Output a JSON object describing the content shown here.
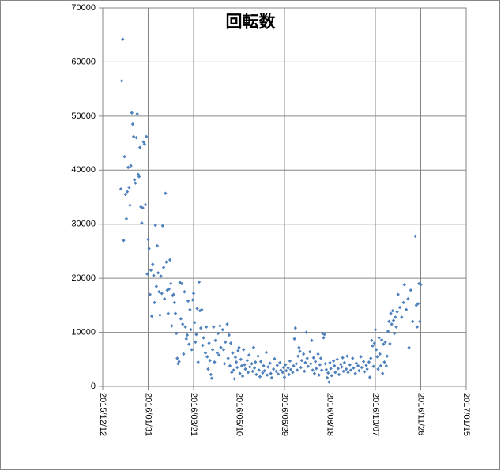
{
  "chart_data": {
    "type": "scatter",
    "title": "回転数",
    "color": "#4f81bd",
    "grid": true,
    "xlim": [
      "2015/12/12",
      "2017/01/15"
    ],
    "xticks": [
      "2015/12/12",
      "2016/01/31",
      "2016/03/21",
      "2016/05/10",
      "2016/06/29",
      "2016/08/18",
      "2016/10/07",
      "2016/11/26",
      "2017/01/15"
    ],
    "ylim": [
      0,
      70000
    ],
    "yticks": [
      0,
      10000,
      20000,
      30000,
      40000,
      50000,
      60000,
      70000
    ],
    "x": [
      "2016/01/01",
      "2016/01/02",
      "2016/01/03",
      "2016/01/04",
      "2016/01/05",
      "2016/01/06",
      "2016/01/07",
      "2016/01/08",
      "2016/01/09",
      "2016/01/10",
      "2016/01/11",
      "2016/01/12",
      "2016/01/13",
      "2016/01/14",
      "2016/01/15",
      "2016/01/16",
      "2016/01/17",
      "2016/01/18",
      "2016/01/19",
      "2016/01/20",
      "2016/01/21",
      "2016/01/22",
      "2016/01/23",
      "2016/01/24",
      "2016/01/25",
      "2016/01/26",
      "2016/01/27",
      "2016/01/28",
      "2016/01/29",
      "2016/01/30",
      "2016/01/31",
      "2016/02/01",
      "2016/02/02",
      "2016/02/03",
      "2016/02/04",
      "2016/02/05",
      "2016/02/06",
      "2016/02/07",
      "2016/02/08",
      "2016/02/09",
      "2016/02/10",
      "2016/02/11",
      "2016/02/12",
      "2016/02/13",
      "2016/02/14",
      "2016/02/15",
      "2016/02/16",
      "2016/02/17",
      "2016/02/18",
      "2016/02/19",
      "2016/02/20",
      "2016/02/21",
      "2016/02/22",
      "2016/02/23",
      "2016/02/24",
      "2016/02/25",
      "2016/02/26",
      "2016/02/27",
      "2016/02/28",
      "2016/02/29",
      "2016/03/01",
      "2016/03/02",
      "2016/03/03",
      "2016/03/04",
      "2016/03/05",
      "2016/03/06",
      "2016/03/07",
      "2016/03/08",
      "2016/03/09",
      "2016/03/10",
      "2016/03/11",
      "2016/03/12",
      "2016/03/13",
      "2016/03/14",
      "2016/03/15",
      "2016/03/16",
      "2016/03/17",
      "2016/03/18",
      "2016/03/19",
      "2016/03/20",
      "2016/03/21",
      "2016/03/22",
      "2016/03/23",
      "2016/03/24",
      "2016/03/25",
      "2016/03/26",
      "2016/03/27",
      "2016/03/28",
      "2016/03/29",
      "2016/03/30",
      "2016/03/31",
      "2016/04/01",
      "2016/04/03",
      "2016/04/04",
      "2016/04/05",
      "2016/04/06",
      "2016/04/07",
      "2016/04/08",
      "2016/04/09",
      "2016/04/10",
      "2016/04/11",
      "2016/04/12",
      "2016/04/13",
      "2016/04/14",
      "2016/04/16",
      "2016/04/17",
      "2016/04/18",
      "2016/04/19",
      "2016/04/20",
      "2016/04/22",
      "2016/04/23",
      "2016/04/24",
      "2016/04/25",
      "2016/04/27",
      "2016/04/28",
      "2016/04/29",
      "2016/04/30",
      "2016/05/01",
      "2016/05/02",
      "2016/05/03",
      "2016/05/04",
      "2016/05/05",
      "2016/05/06",
      "2016/05/07",
      "2016/05/08",
      "2016/05/09",
      "2016/05/10",
      "2016/05/11",
      "2016/05/12",
      "2016/05/13",
      "2016/05/14",
      "2016/05/15",
      "2016/05/16",
      "2016/05/17",
      "2016/05/19",
      "2016/05/20",
      "2016/05/21",
      "2016/05/22",
      "2016/05/24",
      "2016/05/25",
      "2016/05/26",
      "2016/05/27",
      "2016/05/28",
      "2016/05/29",
      "2016/05/31",
      "2016/06/01",
      "2016/06/02",
      "2016/06/03",
      "2016/06/05",
      "2016/06/06",
      "2016/06/07",
      "2016/06/09",
      "2016/06/10",
      "2016/06/11",
      "2016/06/13",
      "2016/06/14",
      "2016/06/15",
      "2016/06/17",
      "2016/06/18",
      "2016/06/20",
      "2016/06/21",
      "2016/06/22",
      "2016/06/24",
      "2016/06/25",
      "2016/06/27",
      "2016/06/28",
      "2016/06/29",
      "2016/06/30",
      "2016/07/01",
      "2016/07/03",
      "2016/07/04",
      "2016/07/05",
      "2016/07/06",
      "2016/07/08",
      "2016/07/09",
      "2016/07/10",
      "2016/07/11",
      "2016/07/12",
      "2016/07/13",
      "2016/07/14",
      "2016/07/15",
      "2016/07/16",
      "2016/07/17",
      "2016/07/18",
      "2016/07/20",
      "2016/07/21",
      "2016/07/22",
      "2016/07/23",
      "2016/07/24",
      "2016/07/25",
      "2016/07/27",
      "2016/07/28",
      "2016/07/29",
      "2016/07/30",
      "2016/07/31",
      "2016/08/01",
      "2016/08/02",
      "2016/08/03",
      "2016/08/05",
      "2016/08/06",
      "2016/08/07",
      "2016/08/08",
      "2016/08/09",
      "2016/08/10",
      "2016/08/11",
      "2016/08/12",
      "2016/08/13",
      "2016/08/14",
      "2016/08/15",
      "2016/08/16",
      "2016/08/17",
      "2016/08/18",
      "2016/08/19",
      "2016/08/20",
      "2016/08/22",
      "2016/08/23",
      "2016/08/24",
      "2016/08/26",
      "2016/08/27",
      "2016/08/28",
      "2016/08/30",
      "2016/08/31",
      "2016/09/01",
      "2016/09/02",
      "2016/09/03",
      "2016/09/05",
      "2016/09/06",
      "2016/09/07",
      "2016/09/09",
      "2016/09/10",
      "2016/09/12",
      "2016/09/13",
      "2016/09/15",
      "2016/09/16",
      "2016/09/18",
      "2016/09/19",
      "2016/09/21",
      "2016/09/22",
      "2016/09/24",
      "2016/09/25",
      "2016/09/27",
      "2016/09/28",
      "2016/09/30",
      "2016/10/01",
      "2016/10/02",
      "2016/10/03",
      "2016/10/04",
      "2016/10/05",
      "2016/10/06",
      "2016/10/07",
      "2016/10/08",
      "2016/10/09",
      "2016/10/10",
      "2016/10/11",
      "2016/10/12",
      "2016/10/13",
      "2016/10/14",
      "2016/10/15",
      "2016/10/16",
      "2016/10/17",
      "2016/10/18",
      "2016/10/19",
      "2016/10/20",
      "2016/10/21",
      "2016/10/22",
      "2016/10/23",
      "2016/10/24",
      "2016/10/25",
      "2016/10/26",
      "2016/10/27",
      "2016/10/28",
      "2016/10/29",
      "2016/10/30",
      "2016/10/31",
      "2016/11/01",
      "2016/11/03",
      "2016/11/05",
      "2016/11/07",
      "2016/11/08",
      "2016/11/10",
      "2016/11/12",
      "2016/11/13",
      "2016/11/15",
      "2016/11/17",
      "2016/11/20",
      "2016/11/21",
      "2016/11/22",
      "2016/11/23",
      "2016/11/24",
      "2016/11/25",
      "2016/11/26"
    ],
    "values": [
      36500,
      56500,
      64200,
      27000,
      42500,
      35500,
      31000,
      36000,
      40500,
      36800,
      33500,
      40800,
      50600,
      48500,
      46200,
      38200,
      37600,
      46000,
      50400,
      39200,
      38800,
      44200,
      33200,
      30200,
      33000,
      45200,
      44800,
      33600,
      46200,
      20800,
      27200,
      25500,
      17000,
      21500,
      13000,
      22600,
      20500,
      15500,
      29800,
      18500,
      26000,
      21000,
      17500,
      13200,
      20400,
      17200,
      29700,
      22000,
      16200,
      35700,
      23000,
      17800,
      13500,
      18000,
      23400,
      19000,
      11200,
      16800,
      17000,
      15500,
      13500,
      9800,
      5200,
      4200,
      4600,
      19200,
      12500,
      19000,
      11500,
      6000,
      17500,
      11000,
      8800,
      9500,
      15800,
      7800,
      14200,
      10500,
      6800,
      16000,
      17200,
      11800,
      8200,
      9600,
      14400,
      4500,
      19300,
      14000,
      10800,
      14200,
      7600,
      9000,
      6200,
      11000,
      5500,
      3200,
      8000,
      4800,
      2200,
      1500,
      6800,
      11000,
      4500,
      8500,
      6200,
      9800,
      5800,
      11200,
      7200,
      10500,
      6800,
      4200,
      8200,
      11500,
      5200,
      9500,
      3800,
      8000,
      2600,
      6200,
      3000,
      1400,
      5400,
      4500,
      3500,
      6600,
      7200,
      2400,
      5000,
      3800,
      1900,
      6800,
      4000,
      3200,
      4800,
      2600,
      5800,
      3600,
      4200,
      2800,
      7200,
      3400,
      4500,
      2200,
      5600,
      3000,
      1800,
      4600,
      2500,
      3800,
      2900,
      6300,
      2100,
      3600,
      4300,
      2400,
      1600,
      3200,
      5100,
      2800,
      3900,
      2300,
      4400,
      3000,
      2600,
      3500,
      1700,
      4000,
      2900,
      3400,
      2200,
      4700,
      3100,
      2600,
      3800,
      8800,
      10800,
      4200,
      3000,
      5600,
      7200,
      6500,
      3500,
      4800,
      6000,
      2800,
      4400,
      10000,
      5200,
      3700,
      6400,
      4200,
      8500,
      3000,
      5300,
      2400,
      4600,
      3300,
      6000,
      2100,
      4000,
      5200,
      3000,
      9800,
      9000,
      9600,
      4200,
      3100,
      1600,
      2500,
      800,
      4400,
      3300,
      2000,
      4700,
      3800,
      2600,
      5000,
      3300,
      2200,
      4100,
      3600,
      5300,
      2800,
      4400,
      3200,
      5600,
      2600,
      4000,
      3000,
      5200,
      3400,
      2400,
      4300,
      3800,
      2900,
      5500,
      3500,
      4600,
      2700,
      3900,
      3200,
      4500,
      1700,
      5200,
      8500,
      7500,
      3700,
      8000,
      10500,
      6800,
      5500,
      3200,
      9000,
      6000,
      3800,
      8600,
      2400,
      7800,
      4500,
      8200,
      3800,
      5600,
      10200,
      12000,
      7900,
      13500,
      11500,
      14000,
      12200,
      9800,
      12800,
      11000,
      13800,
      17000,
      14600,
      12800,
      15500,
      18800,
      14200,
      16200,
      7200,
      17800,
      12000,
      27800,
      15000,
      11000,
      15300,
      19000,
      12000,
      18800
    ]
  }
}
